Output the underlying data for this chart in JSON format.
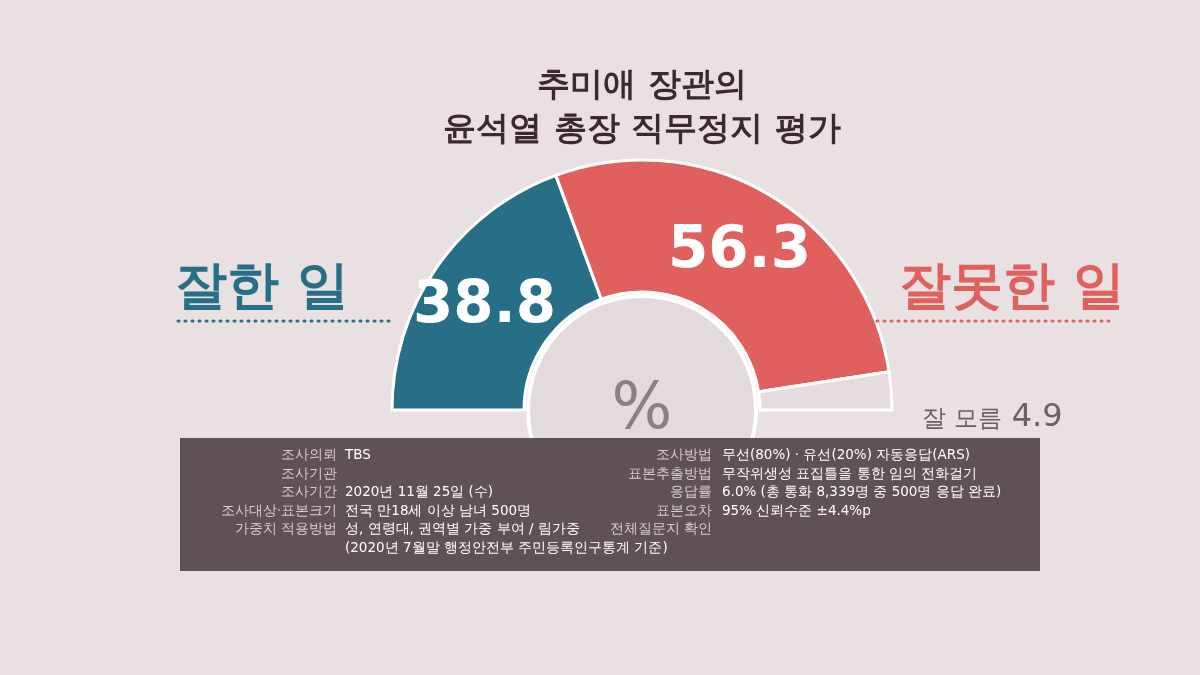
{
  "chart_data": {
    "type": "donut",
    "title": "추미애 장관의 윤석열 총장 직무정지 평가",
    "categories": [
      "잘한 일",
      "잘못한 일",
      "잘 모름"
    ],
    "values": [
      38.8,
      56.3,
      4.9
    ],
    "colors": [
      "#266f87",
      "#e0605e",
      "#e6dcde"
    ],
    "data_labels": true,
    "annotations": [
      "%",
      "조사의뢰",
      "TBS",
      "조사기관",
      "조사기간",
      "2020년 11월 25일 (수)",
      "조사대상·표본크기",
      "전국 만18세 이상 남녀 500명",
      "가중치 적용방법",
      "성, 연령대, 권역별 가중 부여 / 림가중",
      "(2020년 7월말 행정안전부 주민등록인구통계 기준)",
      "조사방법",
      "무선(80%) · 유선(20%) 자동응답(ARS)",
      "표본추출방법",
      "무작위생성 표집틀을 통한 임의 전화걸기",
      "응답률",
      "6.0% (총 통화 8,339명 중 500명 응답 완료)",
      "표본오차",
      "95% 신뢰수준 ±4.4%p",
      "전체질문지 확인"
    ]
  }
}
